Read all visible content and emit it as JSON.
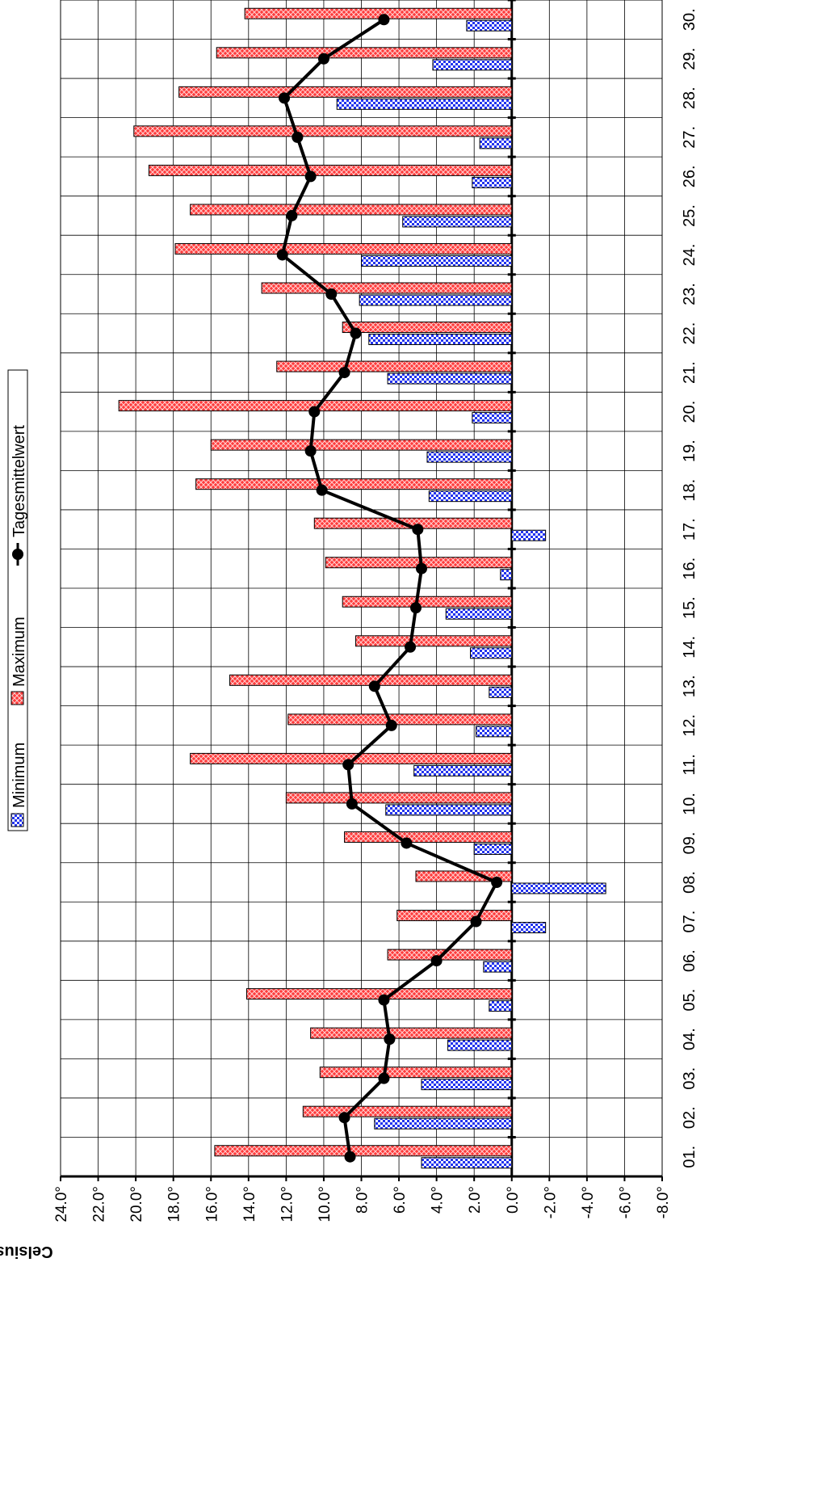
{
  "chart_data": {
    "type": "bar",
    "orientation": "horizontal",
    "categories": [
      "01.",
      "02.",
      "03.",
      "04.",
      "05.",
      "06.",
      "07.",
      "08.",
      "09.",
      "10.",
      "11.",
      "12.",
      "13.",
      "14.",
      "15.",
      "16.",
      "17.",
      "18.",
      "19.",
      "20.",
      "21.",
      "22.",
      "23.",
      "24.",
      "25.",
      "26.",
      "27.",
      "28.",
      "29.",
      "30."
    ],
    "series": [
      {
        "name": "Minimum",
        "kind": "bar",
        "color": "#2b2bff",
        "pattern": "checker",
        "values": [
          4.8,
          7.3,
          4.8,
          3.4,
          1.2,
          1.5,
          -1.8,
          -5.0,
          2.0,
          6.7,
          5.2,
          1.9,
          1.2,
          2.2,
          3.5,
          0.6,
          -1.8,
          4.4,
          4.5,
          2.1,
          6.6,
          7.6,
          8.1,
          8.0,
          5.8,
          2.1,
          1.7,
          9.3,
          4.2,
          2.4
        ]
      },
      {
        "name": "Maximum",
        "kind": "bar",
        "color": "#ff4444",
        "pattern": "crosshatch",
        "values": [
          15.8,
          11.1,
          10.2,
          10.7,
          14.1,
          6.6,
          6.1,
          5.1,
          8.9,
          12.0,
          17.1,
          11.9,
          15.0,
          8.3,
          9.0,
          9.9,
          10.5,
          16.8,
          16.0,
          20.9,
          12.5,
          9.0,
          13.3,
          17.9,
          17.1,
          19.3,
          20.1,
          17.7,
          15.7,
          14.2
        ]
      },
      {
        "name": "Tagesmittelwert",
        "kind": "line",
        "color": "#000000",
        "values": [
          8.6,
          8.9,
          6.8,
          6.5,
          6.8,
          4.0,
          1.9,
          0.8,
          5.6,
          8.5,
          8.7,
          6.4,
          7.3,
          5.4,
          5.1,
          4.8,
          5.0,
          10.1,
          10.7,
          10.5,
          8.9,
          8.3,
          9.6,
          12.2,
          11.7,
          10.7,
          11.4,
          12.1,
          10.0,
          6.8
        ]
      }
    ],
    "value_axis": {
      "label": "Celsius",
      "range": [
        -8,
        24
      ],
      "step": 2,
      "tick_labels": [
        "24.0°",
        "22.0°",
        "20.0°",
        "18.0°",
        "16.0°",
        "14.0°",
        "12.0°",
        "10.0°",
        "8.0°",
        "6.0°",
        "4.0°",
        "2.0°",
        "0.0°",
        "-2.0°",
        "-4.0°",
        "-6.0°",
        "-8.0°"
      ],
      "reversed": true
    },
    "grid": true,
    "legend_position": "top-left",
    "rotation": "90deg-clockwise"
  }
}
